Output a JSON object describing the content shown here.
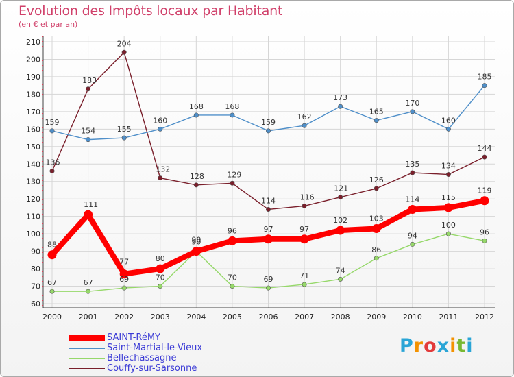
{
  "title": "Evolution des Impôts locaux par Habitant",
  "subtitle": "(en € et par an)",
  "logo": "Proxiti",
  "chart_data": {
    "type": "line",
    "title": "Evolution des Impôts locaux par Habitant",
    "subtitle": "(en € et par an)",
    "xlabel": "",
    "ylabel": "",
    "ylim": [
      60,
      210
    ],
    "yticks": [
      60,
      70,
      80,
      90,
      100,
      110,
      120,
      130,
      140,
      150,
      160,
      170,
      180,
      190,
      200,
      210
    ],
    "grid": true,
    "legend_position": "bottom-left",
    "categories": [
      "2000",
      "2001",
      "2002",
      "2003",
      "2004",
      "2005",
      "2006",
      "2007",
      "2008",
      "2009",
      "2010",
      "2011",
      "2012"
    ],
    "series": [
      {
        "name": "SAINT-RéMY",
        "color": "#ff0000",
        "values": [
          88,
          111,
          77,
          80,
          90,
          96,
          97,
          97,
          102,
          103,
          114,
          115,
          119
        ]
      },
      {
        "name": "Saint-Martial-le-Vieux",
        "color": "#4f8fc9",
        "values": [
          159,
          154,
          155,
          160,
          168,
          168,
          159,
          162,
          173,
          165,
          170,
          160,
          185
        ]
      },
      {
        "name": "Bellechassagne",
        "color": "#96d86a",
        "values": [
          67,
          67,
          69,
          70,
          90,
          70,
          69,
          71,
          74,
          86,
          94,
          100,
          96
        ]
      },
      {
        "name": "Couffy-sur-Sarsonne",
        "color": "#7a1f2b",
        "values": [
          136,
          183,
          204,
          132,
          128,
          129,
          114,
          116,
          121,
          126,
          135,
          134,
          144
        ]
      }
    ]
  }
}
